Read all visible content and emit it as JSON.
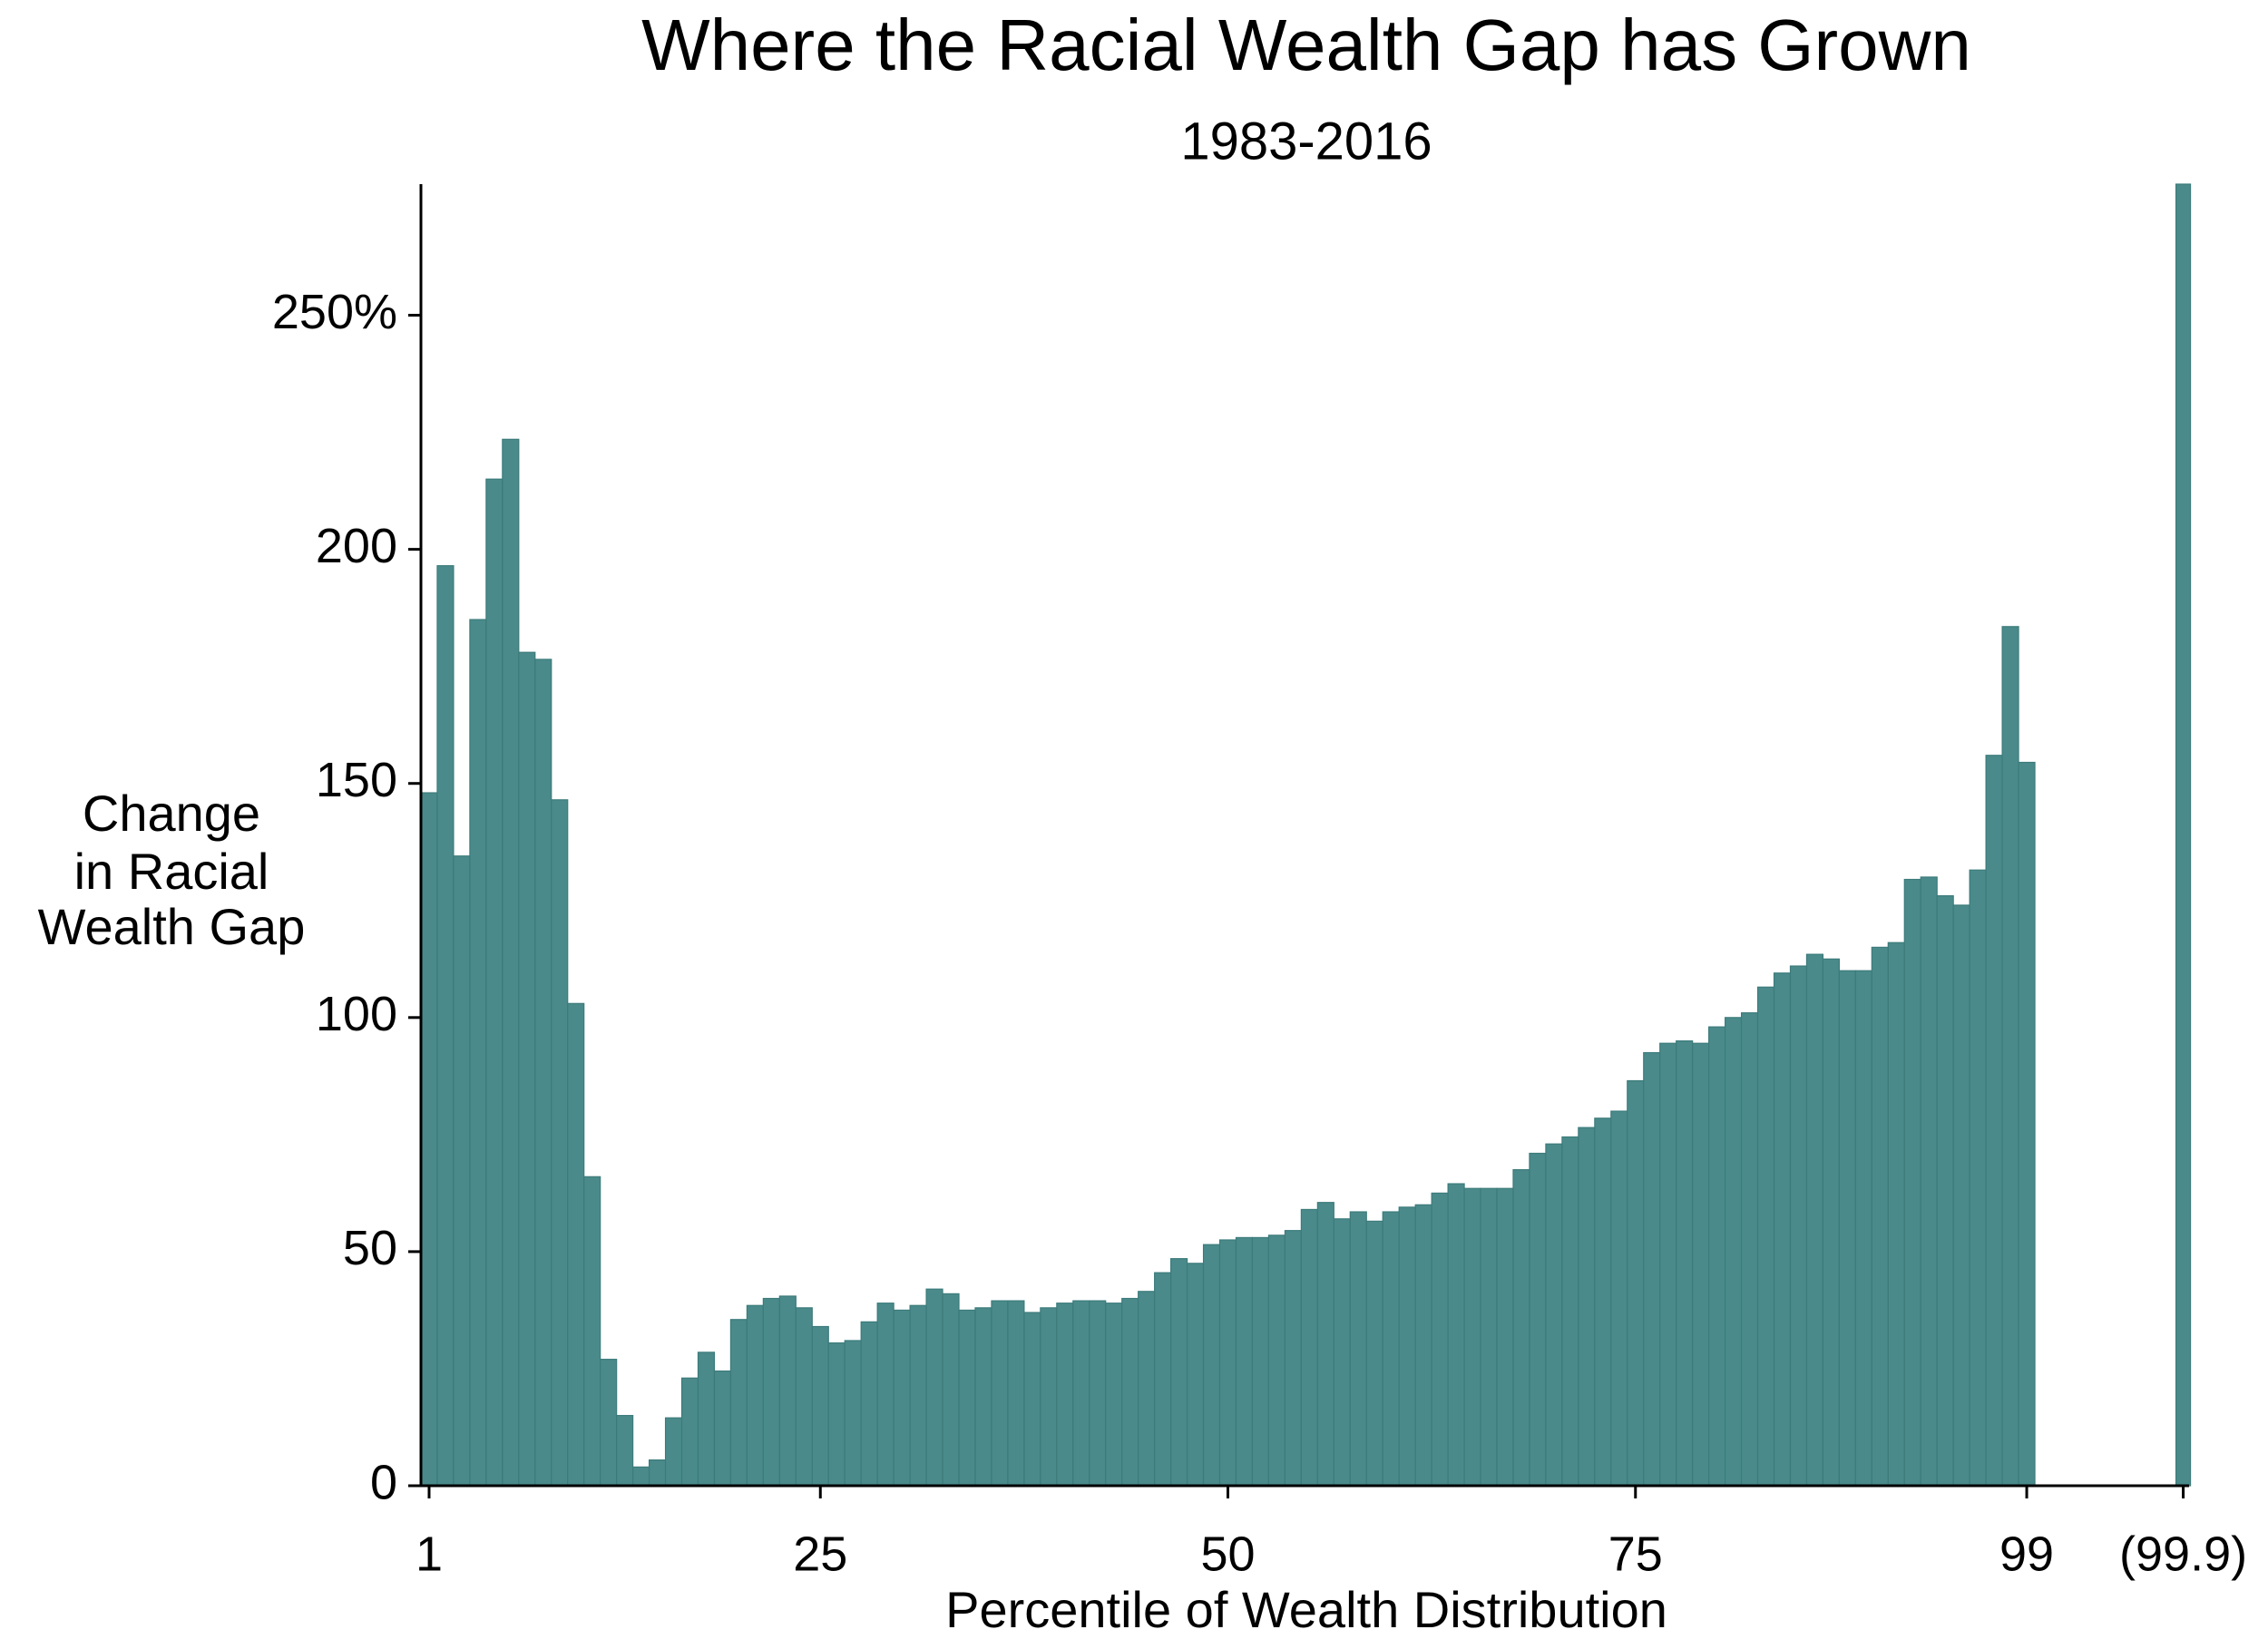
{
  "chart_data": {
    "type": "bar",
    "title": "Where the Racial Wealth Gap has Grown",
    "subtitle": "1983-2016",
    "ylabel": [
      "Change",
      "in Racial",
      "Wealth Gap"
    ],
    "xlabel": "Percentile of Wealth Distribution",
    "categories": [
      "1",
      null,
      null,
      null,
      null,
      null,
      null,
      null,
      null,
      null,
      null,
      null,
      null,
      null,
      null,
      null,
      null,
      null,
      null,
      null,
      null,
      null,
      null,
      null,
      "25",
      null,
      null,
      null,
      null,
      null,
      null,
      null,
      null,
      null,
      null,
      null,
      null,
      null,
      null,
      null,
      null,
      null,
      null,
      null,
      null,
      null,
      null,
      null,
      null,
      "50",
      null,
      null,
      null,
      null,
      null,
      null,
      null,
      null,
      null,
      null,
      null,
      null,
      null,
      null,
      null,
      null,
      null,
      null,
      null,
      null,
      null,
      null,
      null,
      null,
      "75",
      null,
      null,
      null,
      null,
      null,
      null,
      null,
      null,
      null,
      null,
      null,
      null,
      null,
      null,
      null,
      null,
      null,
      null,
      null,
      null,
      null,
      null,
      null,
      "99",
      "(99.9)"
    ],
    "values": [
      148,
      196.5,
      134.5,
      185,
      215,
      223.5,
      178,
      176.5,
      146.5,
      103,
      66,
      27,
      15,
      4,
      5.5,
      14.5,
      23,
      28.5,
      24.5,
      35.5,
      38.5,
      40,
      40.5,
      38,
      34,
      30.5,
      31,
      35,
      39,
      37.5,
      38.5,
      42,
      41,
      37.5,
      38,
      39.5,
      39.5,
      37,
      38,
      39,
      39.5,
      39.5,
      39,
      40,
      41.5,
      45.5,
      48.5,
      47.5,
      51.5,
      52.5,
      53,
      53,
      53.5,
      54.5,
      59,
      60.5,
      57,
      58.5,
      56.5,
      58.5,
      59.5,
      60,
      62.5,
      64.5,
      63.5,
      63.5,
      63.5,
      67.5,
      71,
      73,
      74.5,
      76.5,
      78.5,
      80,
      86.5,
      92.5,
      94.5,
      95,
      94.5,
      98,
      100,
      101,
      106.5,
      109.5,
      111,
      113.5,
      112.5,
      110,
      110,
      115,
      116,
      129.5,
      130,
      126,
      124,
      131.5,
      156,
      183.5,
      154.5,
      278
    ],
    "color": "#4a8a8a",
    "ylim": [
      0,
      278
    ],
    "yticks": [
      0,
      50,
      100,
      150,
      200,
      {
        "value": 250,
        "label": "250%"
      }
    ]
  }
}
